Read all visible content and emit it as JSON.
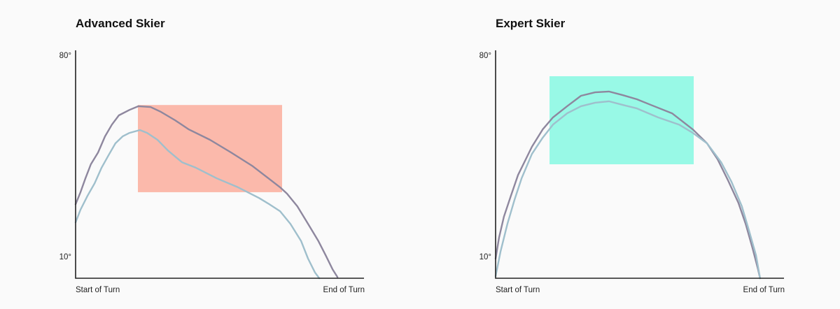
{
  "chart_data": [
    {
      "type": "line",
      "title": "Advanced Skier",
      "y_tick_labels": [
        "80°",
        "10°"
      ],
      "y_ticks": [
        80,
        10
      ],
      "ylim": [
        2.5,
        81.7
      ],
      "x_tick_labels": [
        "Start of Turn",
        "End of Turn"
      ],
      "xlim": [
        0,
        100
      ],
      "grid": false,
      "highlight": {
        "x": [
          21.6,
          71.6
        ],
        "y": [
          32.4,
          62.7
        ],
        "color": "#fbb9ab"
      },
      "series": [
        {
          "color": "#8e879e",
          "x": [
            0,
            1.7,
            3.4,
            5.3,
            7.8,
            10.2,
            12.6,
            15,
            18.7,
            21.8,
            26,
            29.6,
            34.5,
            39.3,
            46.6,
            53.9,
            61.2,
            66,
            70.9,
            73.3,
            76.9,
            80.6,
            84.2,
            86.7,
            89.1,
            90.8
          ],
          "y": [
            28.2,
            32.4,
            37.2,
            42.1,
            46.2,
            51.8,
            55.9,
            59.1,
            61.0,
            62.3,
            62.0,
            60.3,
            57.4,
            54.2,
            50.6,
            46.2,
            41.6,
            37.9,
            34.1,
            31.9,
            27.5,
            21.4,
            15.4,
            10.5,
            5.6,
            2.9
          ]
        },
        {
          "color": "#9fbfcc",
          "x": [
            0,
            1.7,
            4.1,
            6.6,
            9,
            11.4,
            13.8,
            16.3,
            18.7,
            22.3,
            24.8,
            28.4,
            32,
            36.9,
            41.7,
            49,
            56.3,
            63.6,
            67.2,
            70.9,
            74.5,
            78.2,
            80.6,
            83,
            84.5
          ],
          "y": [
            21.9,
            26.3,
            31.1,
            35.5,
            40.9,
            45.2,
            49.4,
            51.8,
            53.0,
            54.0,
            53.0,
            50.6,
            46.9,
            42.8,
            40.9,
            37.2,
            34.1,
            30.4,
            28.2,
            25.8,
            21.4,
            15.4,
            9.3,
            4.5,
            2.5
          ]
        }
      ]
    },
    {
      "type": "line",
      "title": "Expert Skier",
      "y_tick_labels": [
        "80°",
        "10°"
      ],
      "y_ticks": [
        80,
        10
      ],
      "ylim": [
        2.5,
        81.7
      ],
      "x_tick_labels": [
        "Start of Turn",
        "End of Turn"
      ],
      "xlim": [
        0,
        100
      ],
      "grid": false,
      "highlight": {
        "x": [
          18.7,
          68.7
        ],
        "y": [
          42.1,
          72.7
        ],
        "color": "#98f9e6"
      },
      "series": [
        {
          "color": "#8e879e",
          "x": [
            0,
            1.2,
            2.9,
            5.3,
            7.8,
            10.2,
            12.6,
            16.3,
            19.9,
            24.8,
            29.6,
            34.5,
            39.3,
            44.2,
            49,
            53.9,
            61.2,
            68.4,
            73.3,
            77,
            80.6,
            84.2,
            86.7,
            89.1,
            91,
            91.7
          ],
          "y": [
            9.3,
            16.6,
            23.9,
            31.1,
            38.4,
            43.3,
            48.2,
            54.2,
            58.4,
            62.3,
            65.9,
            67.1,
            67.4,
            66.1,
            64.7,
            62.7,
            59.8,
            54.2,
            49.4,
            43.8,
            36.5,
            28.7,
            21.4,
            12.9,
            5.6,
            2.5
          ]
        },
        {
          "color": "#9fbfcc",
          "x": [
            0,
            1.7,
            4.1,
            6.6,
            9,
            12.6,
            16.3,
            19.9,
            24.8,
            29.6,
            34.5,
            39.3,
            44.2,
            49,
            56.3,
            63.6,
            68.4,
            73.3,
            78.2,
            81.8,
            85.4,
            87.9,
            90.3,
            91.7
          ],
          "y": [
            3.2,
            11.7,
            21.4,
            29.9,
            37.2,
            45.7,
            51.3,
            55.9,
            59.8,
            62.3,
            63.5,
            64.0,
            62.7,
            61.5,
            58.4,
            55.9,
            53.0,
            49.4,
            42.8,
            36.0,
            27.5,
            19.0,
            10.5,
            2.5
          ]
        }
      ]
    }
  ]
}
